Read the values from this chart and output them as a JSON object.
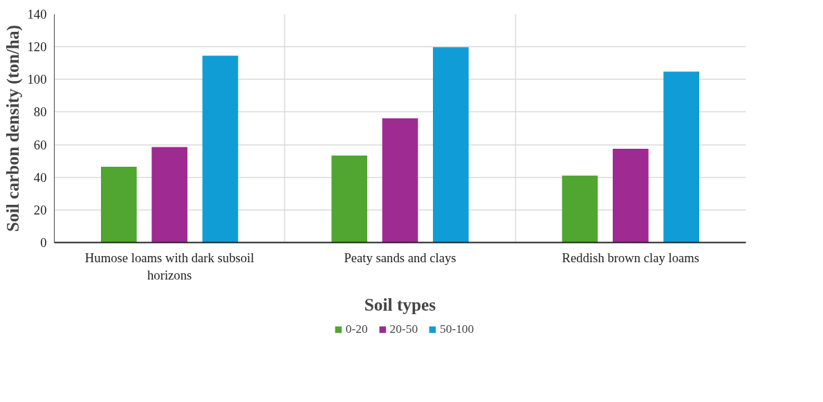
{
  "chart_data": {
    "type": "bar",
    "xlabel": "Soil types",
    "ylabel": "Soil carbon density (ton/ha)",
    "categories": [
      "Humose loams with dark subsoil horizons",
      "Peaty sands and clays",
      "Reddish brown clay loams"
    ],
    "series": [
      {
        "name": "0-20",
        "color": "#50a630",
        "values": [
          46.5,
          53.3,
          41
        ]
      },
      {
        "name": "20-50",
        "color": "#9e2b91",
        "values": [
          58.5,
          76.2,
          57.5
        ]
      },
      {
        "name": "50-100",
        "color": "#109dd6",
        "values": [
          114.5,
          119.7,
          104.8
        ]
      }
    ],
    "ylim": [
      0,
      140
    ],
    "yticks": [
      0,
      20,
      40,
      60,
      80,
      100,
      120,
      140
    ],
    "grid": true,
    "legend": "bottom"
  }
}
